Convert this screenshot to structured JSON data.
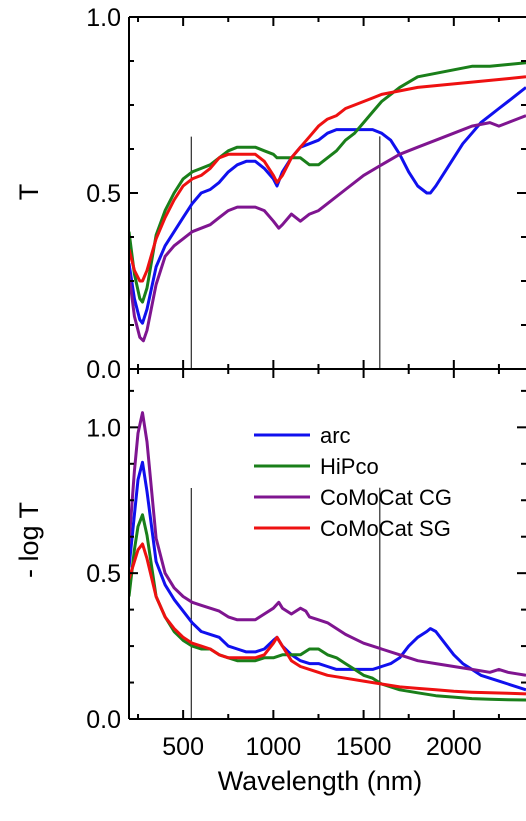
{
  "chart_data": [
    {
      "type": "line",
      "title": "",
      "xlabel": "",
      "ylabel": "T",
      "xlim": [
        200,
        2400
      ],
      "ylim": [
        0.0,
        1.0
      ],
      "y_ticks": [
        "0.0",
        "0.5",
        "1.0"
      ],
      "x_ticks": [],
      "vertical_markers": [
        545,
        1590
      ],
      "series": [
        {
          "name": "arc",
          "color": "#1010ee",
          "x": [
            200,
            230,
            260,
            275,
            300,
            350,
            400,
            450,
            500,
            550,
            600,
            650,
            700,
            750,
            800,
            850,
            900,
            950,
            1000,
            1020,
            1050,
            1100,
            1150,
            1200,
            1250,
            1300,
            1350,
            1400,
            1450,
            1500,
            1550,
            1600,
            1650,
            1700,
            1750,
            1800,
            1850,
            1870,
            1900,
            1950,
            2000,
            2050,
            2100,
            2150,
            2200,
            2250,
            2300,
            2350,
            2400
          ],
          "y": [
            0.3,
            0.2,
            0.14,
            0.13,
            0.17,
            0.29,
            0.35,
            0.39,
            0.43,
            0.47,
            0.5,
            0.51,
            0.53,
            0.56,
            0.58,
            0.59,
            0.59,
            0.57,
            0.54,
            0.52,
            0.56,
            0.6,
            0.63,
            0.64,
            0.65,
            0.67,
            0.68,
            0.68,
            0.68,
            0.68,
            0.68,
            0.67,
            0.65,
            0.61,
            0.56,
            0.52,
            0.5,
            0.5,
            0.52,
            0.56,
            0.6,
            0.64,
            0.67,
            0.7,
            0.72,
            0.74,
            0.76,
            0.78,
            0.8
          ]
        },
        {
          "name": "HiPco",
          "color": "#1a7f1a",
          "x": [
            200,
            230,
            260,
            275,
            300,
            350,
            400,
            450,
            500,
            550,
            600,
            650,
            700,
            750,
            800,
            850,
            900,
            950,
            1000,
            1020,
            1050,
            1100,
            1150,
            1200,
            1250,
            1300,
            1350,
            1400,
            1450,
            1500,
            1550,
            1600,
            1650,
            1700,
            1800,
            1900,
            2000,
            2100,
            2200,
            2300,
            2400
          ],
          "y": [
            0.39,
            0.27,
            0.2,
            0.19,
            0.23,
            0.38,
            0.45,
            0.5,
            0.54,
            0.56,
            0.57,
            0.58,
            0.6,
            0.62,
            0.63,
            0.63,
            0.63,
            0.62,
            0.61,
            0.6,
            0.6,
            0.6,
            0.6,
            0.58,
            0.58,
            0.6,
            0.62,
            0.65,
            0.67,
            0.7,
            0.73,
            0.76,
            0.78,
            0.8,
            0.83,
            0.84,
            0.85,
            0.86,
            0.86,
            0.865,
            0.87
          ]
        },
        {
          "name": "CoMoCat CG",
          "color": "#7f1590",
          "x": [
            200,
            230,
            260,
            280,
            300,
            350,
            400,
            450,
            500,
            550,
            600,
            650,
            700,
            750,
            800,
            850,
            900,
            950,
            1000,
            1030,
            1050,
            1100,
            1150,
            1200,
            1250,
            1300,
            1400,
            1500,
            1600,
            1700,
            1800,
            1900,
            2000,
            2100,
            2200,
            2250,
            2300,
            2350,
            2400
          ],
          "y": [
            0.27,
            0.15,
            0.09,
            0.08,
            0.11,
            0.24,
            0.32,
            0.35,
            0.37,
            0.39,
            0.4,
            0.41,
            0.43,
            0.45,
            0.46,
            0.46,
            0.46,
            0.45,
            0.42,
            0.4,
            0.41,
            0.44,
            0.42,
            0.44,
            0.45,
            0.47,
            0.51,
            0.55,
            0.58,
            0.61,
            0.63,
            0.65,
            0.67,
            0.69,
            0.7,
            0.69,
            0.7,
            0.71,
            0.72
          ]
        },
        {
          "name": "CoMoCat SG",
          "color": "#ee1111",
          "x": [
            200,
            230,
            260,
            275,
            300,
            350,
            400,
            450,
            500,
            550,
            600,
            650,
            700,
            750,
            800,
            850,
            900,
            950,
            1000,
            1020,
            1050,
            1100,
            1150,
            1200,
            1250,
            1300,
            1350,
            1400,
            1450,
            1500,
            1550,
            1600,
            1700,
            1800,
            1900,
            2000,
            2100,
            2200,
            2300,
            2400
          ],
          "y": [
            0.34,
            0.28,
            0.25,
            0.25,
            0.28,
            0.37,
            0.43,
            0.48,
            0.52,
            0.54,
            0.55,
            0.57,
            0.6,
            0.61,
            0.61,
            0.61,
            0.61,
            0.59,
            0.55,
            0.53,
            0.55,
            0.6,
            0.63,
            0.66,
            0.69,
            0.71,
            0.72,
            0.74,
            0.75,
            0.76,
            0.77,
            0.78,
            0.79,
            0.8,
            0.805,
            0.81,
            0.815,
            0.82,
            0.825,
            0.83
          ]
        }
      ]
    },
    {
      "type": "line",
      "title": "",
      "xlabel": "Wavelength (nm)",
      "ylabel": "- log T",
      "xlim": [
        200,
        2400
      ],
      "ylim": [
        0.0,
        1.2
      ],
      "x_ticks": [
        "500",
        "1000",
        "1500",
        "2000"
      ],
      "y_ticks": [
        "0.0",
        "0.5",
        "1.0"
      ],
      "vertical_markers": [
        545,
        1590
      ],
      "legend_position": "top-right",
      "series": [
        {
          "name": "arc",
          "color": "#1010ee",
          "x": [
            200,
            230,
            250,
            275,
            300,
            350,
            400,
            450,
            500,
            550,
            600,
            650,
            700,
            750,
            800,
            850,
            900,
            950,
            1000,
            1020,
            1050,
            1100,
            1150,
            1200,
            1250,
            1300,
            1350,
            1400,
            1450,
            1500,
            1550,
            1600,
            1650,
            1700,
            1750,
            1800,
            1850,
            1870,
            1900,
            1950,
            2000,
            2050,
            2100,
            2150,
            2200,
            2250,
            2300,
            2350,
            2400
          ],
          "y": [
            0.52,
            0.7,
            0.82,
            0.88,
            0.78,
            0.54,
            0.46,
            0.41,
            0.37,
            0.33,
            0.3,
            0.29,
            0.28,
            0.25,
            0.24,
            0.23,
            0.23,
            0.24,
            0.27,
            0.28,
            0.25,
            0.22,
            0.2,
            0.19,
            0.19,
            0.18,
            0.17,
            0.17,
            0.17,
            0.17,
            0.17,
            0.18,
            0.19,
            0.21,
            0.25,
            0.28,
            0.3,
            0.31,
            0.3,
            0.26,
            0.22,
            0.19,
            0.17,
            0.15,
            0.14,
            0.13,
            0.12,
            0.11,
            0.1
          ]
        },
        {
          "name": "HiPco",
          "color": "#1a7f1a",
          "x": [
            200,
            230,
            250,
            275,
            300,
            350,
            400,
            450,
            500,
            550,
            600,
            650,
            700,
            750,
            800,
            850,
            900,
            950,
            1000,
            1050,
            1100,
            1150,
            1200,
            1250,
            1300,
            1350,
            1400,
            1450,
            1500,
            1550,
            1600,
            1700,
            1800,
            1900,
            2000,
            2100,
            2200,
            2300,
            2400
          ],
          "y": [
            0.42,
            0.58,
            0.66,
            0.7,
            0.63,
            0.42,
            0.35,
            0.3,
            0.27,
            0.25,
            0.24,
            0.24,
            0.22,
            0.21,
            0.2,
            0.2,
            0.2,
            0.21,
            0.21,
            0.22,
            0.22,
            0.22,
            0.24,
            0.24,
            0.22,
            0.21,
            0.19,
            0.17,
            0.15,
            0.14,
            0.12,
            0.1,
            0.09,
            0.08,
            0.075,
            0.07,
            0.068,
            0.066,
            0.065
          ]
        },
        {
          "name": "CoMoCat CG",
          "color": "#7f1590",
          "x": [
            200,
            230,
            250,
            275,
            300,
            350,
            400,
            450,
            500,
            550,
            600,
            650,
            700,
            750,
            800,
            850,
            900,
            950,
            1000,
            1030,
            1050,
            1100,
            1150,
            1180,
            1200,
            1250,
            1300,
            1400,
            1500,
            1600,
            1700,
            1800,
            1900,
            2000,
            2100,
            2200,
            2250,
            2300,
            2350,
            2400
          ],
          "y": [
            0.6,
            0.85,
            0.98,
            1.05,
            0.95,
            0.62,
            0.5,
            0.45,
            0.42,
            0.4,
            0.39,
            0.38,
            0.37,
            0.35,
            0.34,
            0.34,
            0.34,
            0.36,
            0.38,
            0.4,
            0.38,
            0.36,
            0.38,
            0.37,
            0.35,
            0.34,
            0.33,
            0.29,
            0.26,
            0.24,
            0.22,
            0.2,
            0.19,
            0.18,
            0.17,
            0.16,
            0.17,
            0.16,
            0.155,
            0.15
          ]
        },
        {
          "name": "CoMoCat SG",
          "color": "#ee1111",
          "x": [
            200,
            230,
            250,
            275,
            300,
            350,
            400,
            450,
            500,
            550,
            600,
            650,
            700,
            750,
            800,
            850,
            900,
            950,
            1000,
            1020,
            1050,
            1100,
            1150,
            1200,
            1300,
            1400,
            1500,
            1600,
            1700,
            1800,
            1900,
            2000,
            2100,
            2200,
            2300,
            2400
          ],
          "y": [
            0.48,
            0.54,
            0.58,
            0.6,
            0.55,
            0.42,
            0.35,
            0.31,
            0.28,
            0.26,
            0.25,
            0.24,
            0.22,
            0.21,
            0.21,
            0.21,
            0.21,
            0.22,
            0.26,
            0.28,
            0.25,
            0.2,
            0.18,
            0.17,
            0.15,
            0.14,
            0.13,
            0.12,
            0.11,
            0.105,
            0.1,
            0.095,
            0.092,
            0.09,
            0.088,
            0.086
          ]
        }
      ]
    }
  ]
}
